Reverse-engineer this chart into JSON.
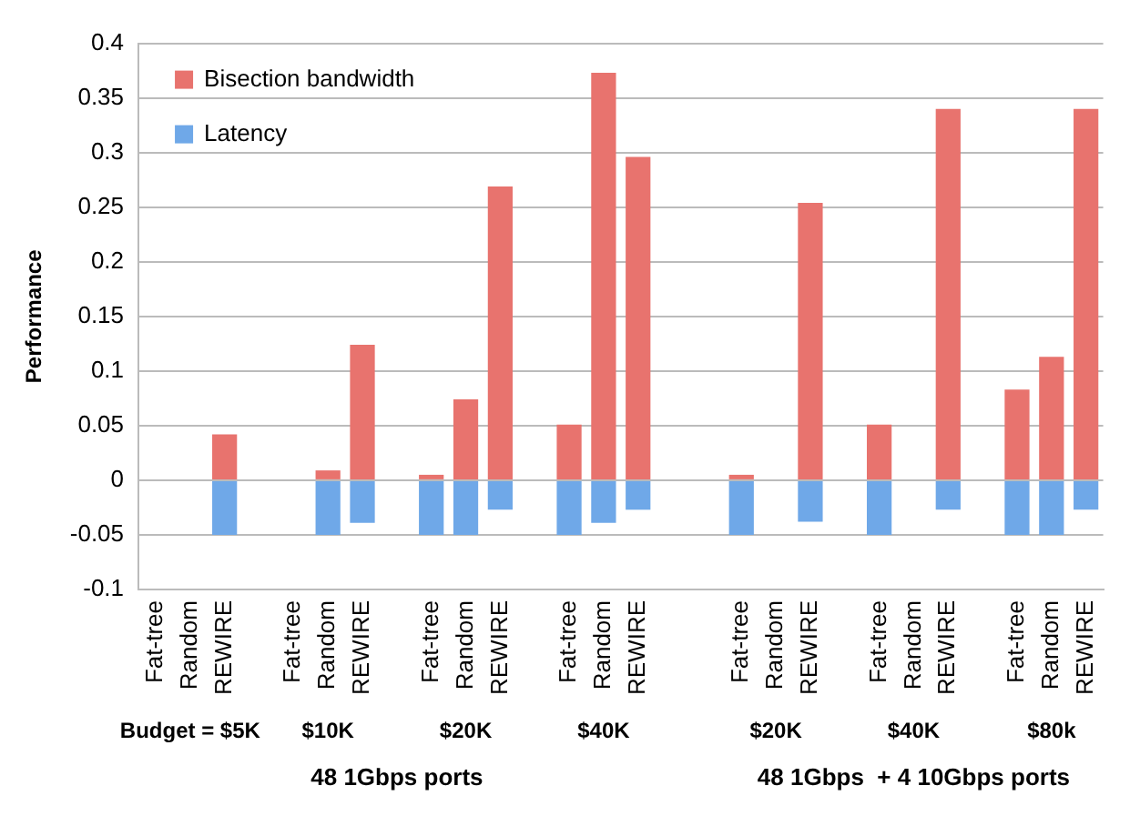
{
  "chart_data": {
    "type": "bar",
    "stacked": true,
    "ylabel": "Performance",
    "categories": [
      "Fat-tree",
      "Random",
      "REWIRE",
      null,
      "Fat-tree",
      "Random",
      "REWIRE",
      null,
      "Fat-tree",
      "Random",
      "REWIRE",
      null,
      "Fat-tree",
      "Random",
      "REWIRE",
      null,
      null,
      "Fat-tree",
      "Random",
      "REWIRE",
      null,
      "Fat-tree",
      "Random",
      "REWIRE",
      null,
      "Fat-tree",
      "Random",
      "REWIRE"
    ],
    "series": [
      {
        "name": "Bisection bandwidth",
        "color": "#e8736e",
        "values": [
          null,
          null,
          0.042,
          null,
          null,
          0.009,
          0.124,
          null,
          0.005,
          0.074,
          0.269,
          null,
          0.051,
          0.373,
          0.296,
          null,
          null,
          0.005,
          null,
          0.254,
          null,
          0.051,
          null,
          0.34,
          null,
          0.083,
          0.113,
          0.34
        ]
      },
      {
        "name": "Latency",
        "color": "#6fa8e8",
        "values": [
          null,
          null,
          -0.05,
          null,
          null,
          -0.05,
          -0.039,
          null,
          -0.05,
          -0.05,
          -0.027,
          null,
          -0.05,
          -0.039,
          -0.027,
          null,
          null,
          -0.05,
          null,
          -0.038,
          null,
          -0.05,
          null,
          -0.027,
          null,
          -0.05,
          -0.05,
          -0.027
        ]
      }
    ],
    "ylim": [
      -0.1,
      0.4
    ],
    "yticks": [
      -0.1,
      -0.05,
      0,
      0.05,
      0.1,
      0.15,
      0.2,
      0.25,
      0.3,
      0.35,
      0.4
    ],
    "grid": "y",
    "legend": "top left",
    "annotations": [
      "Budget = $5K",
      "$10K",
      "$20K",
      "$40K",
      "$20K",
      "$40K",
      "$80k",
      "48 1Gbps ports",
      "48 1Gbps  + 4 10Gbps ports"
    ]
  }
}
